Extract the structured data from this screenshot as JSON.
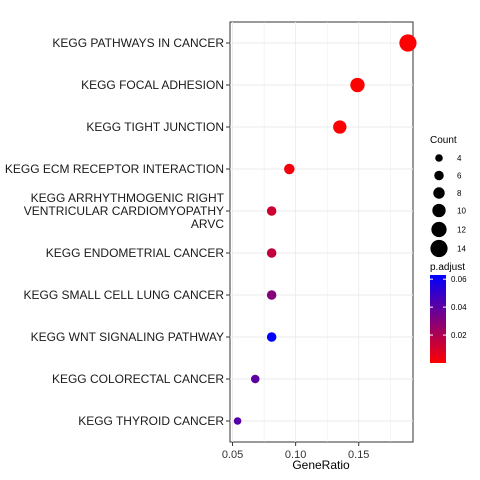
{
  "chart_data": {
    "type": "scatter",
    "xlabel": "GeneRatio",
    "ylabel": "",
    "xlim": [
      0.048,
      0.193
    ],
    "xticks": [
      0.05,
      0.1,
      0.15
    ],
    "xtick_labels": [
      "0.05",
      "0.10",
      "0.15"
    ],
    "grid": true,
    "legend_position": "right",
    "categories": [
      "KEGG PATHWAYS IN CANCER",
      "KEGG FOCAL ADHESION",
      "KEGG TIGHT JUNCTION",
      "KEGG ECM RECEPTOR INTERACTION",
      "KEGG ARRHYTHMOGENIC RIGHT VENTRICULAR CARDIOMYOPATHY ARVC",
      "KEGG ENDOMETRIAL CANCER",
      "KEGG SMALL CELL LUNG CANCER",
      "KEGG WNT SIGNALING PATHWAY",
      "KEGG COLORECTAL CANCER",
      "KEGG THYROID CANCER"
    ],
    "category_label_lines": [
      [
        "KEGG PATHWAYS IN CANCER"
      ],
      [
        "KEGG FOCAL ADHESION"
      ],
      [
        "KEGG TIGHT JUNCTION"
      ],
      [
        "KEGG ECM RECEPTOR INTERACTION"
      ],
      [
        "KEGG ARRHYTHMOGENIC RIGHT",
        "VENTRICULAR CARDIOMYOPATHY",
        "ARVC"
      ],
      [
        "KEGG ENDOMETRIAL CANCER"
      ],
      [
        "KEGG SMALL CELL LUNG CANCER"
      ],
      [
        "KEGG WNT SIGNALING PATHWAY"
      ],
      [
        "KEGG COLORECTAL CANCER"
      ],
      [
        "KEGG THYROID CANCER"
      ]
    ],
    "gene_ratio": [
      0.189,
      0.149,
      0.135,
      0.095,
      0.081,
      0.081,
      0.081,
      0.081,
      0.068,
      0.054
    ],
    "count": [
      14,
      11,
      10,
      7,
      6,
      6,
      6,
      6,
      5,
      4
    ],
    "p_adjust": [
      0.0002,
      0.0005,
      0.0005,
      0.003,
      0.012,
      0.015,
      0.03,
      0.063,
      0.04,
      0.042
    ],
    "size_legend": {
      "title": "Count",
      "values": [
        4,
        6,
        8,
        10,
        12,
        14
      ]
    },
    "color_legend": {
      "title": "p.adjust",
      "ticks": [
        0.02,
        0.04,
        0.06
      ],
      "tick_labels": [
        "0.02",
        "0.04",
        "0.06"
      ],
      "range": [
        0.0,
        0.063
      ],
      "low_color": "#ff0000",
      "high_color": "#0000ff"
    }
  }
}
